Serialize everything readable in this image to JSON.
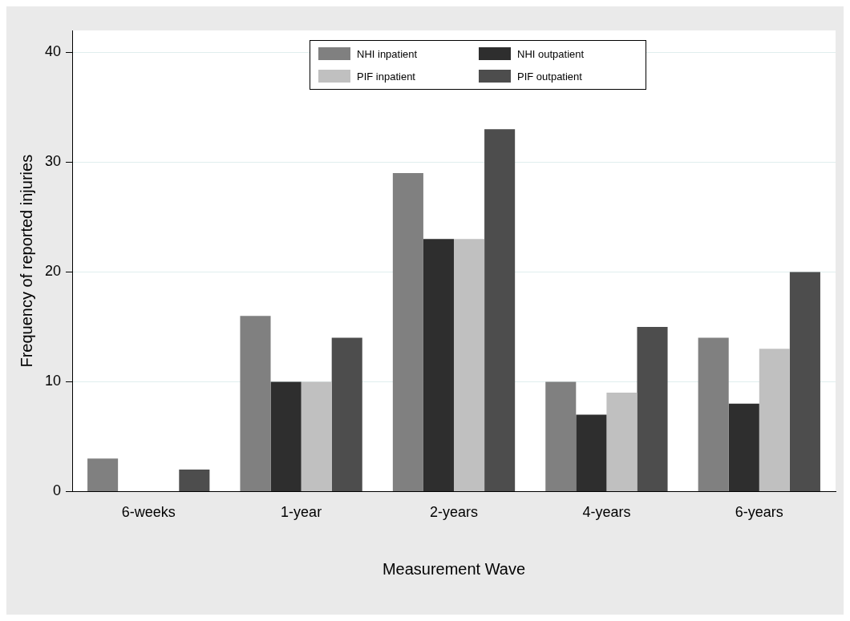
{
  "chart_data": {
    "type": "bar",
    "xlabel": "Measurement Wave",
    "ylabel": "Frequency of reported injuries",
    "categories": [
      "6-weeks",
      "1-year",
      "2-years",
      "4-years",
      "6-years"
    ],
    "series": [
      {
        "name": "NHI inpatient",
        "color": "#808080",
        "values": [
          3,
          16,
          29,
          10,
          14
        ]
      },
      {
        "name": "NHI outpatient",
        "color": "#2e2e2e",
        "values": [
          0,
          10,
          23,
          7,
          8
        ]
      },
      {
        "name": "PIF inpatient",
        "color": "#c0c0c0",
        "values": [
          0,
          10,
          23,
          9,
          13
        ]
      },
      {
        "name": "PIF outpatient",
        "color": "#4d4d4d",
        "values": [
          2,
          14,
          33,
          15,
          20
        ]
      }
    ],
    "ylim": [
      0,
      42
    ],
    "yticks": [
      0,
      10,
      20,
      30,
      40
    ],
    "grid": "y",
    "legend": "top"
  }
}
